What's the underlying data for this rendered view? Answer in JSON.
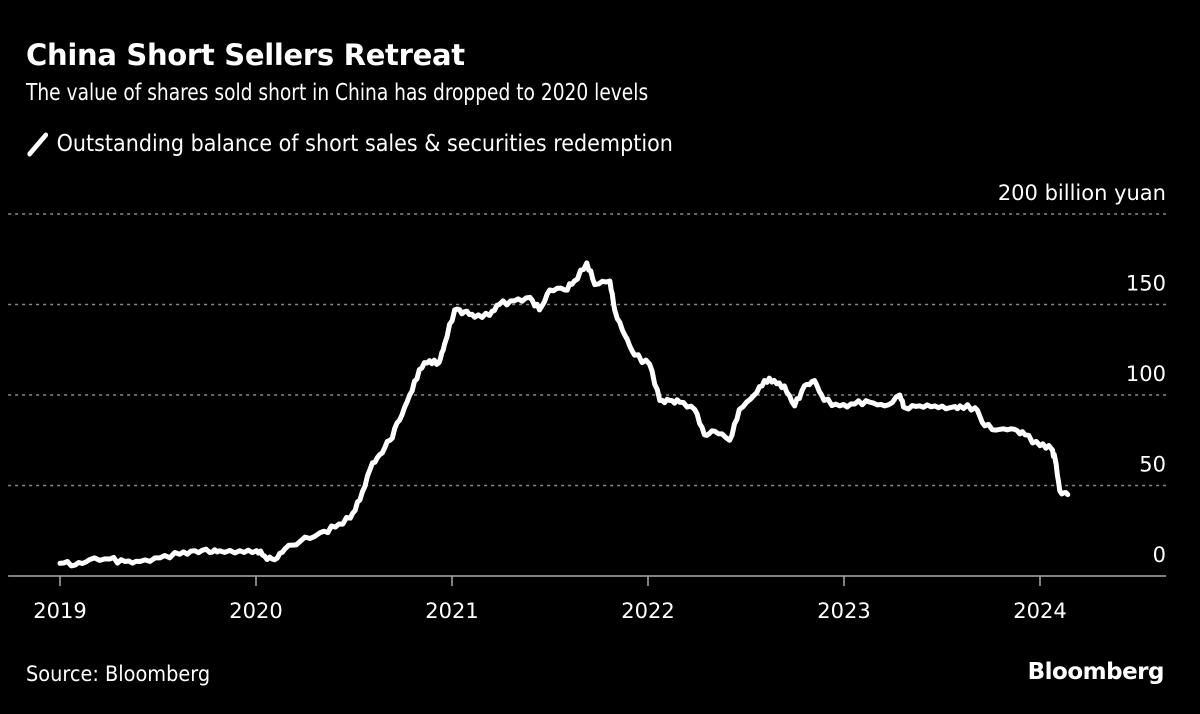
{
  "chart_data": {
    "type": "line",
    "title": "China Short Sellers Retreat",
    "subtitle": "The value of shares sold short in China has dropped to 2020 levels",
    "source": "Source: Bloomberg",
    "logo": "Bloomberg",
    "ylabel": "200 billion yuan",
    "ylim": [
      0,
      200
    ],
    "yticks": [
      0,
      50,
      100,
      150,
      200
    ],
    "ytick_labels": [
      "0",
      "50",
      "100",
      "150",
      "200 billion yuan"
    ],
    "xticks": [
      "2019",
      "2020",
      "2021",
      "2022",
      "2023",
      "2024"
    ],
    "xlim": [
      "2018-10-15",
      "2024-08-15"
    ],
    "grid": "horizontal dotted",
    "legend_placement": "top-left",
    "colors": {
      "background": "#000000",
      "line": "#ffffff",
      "grid": "#8a8a8a"
    },
    "series": [
      {
        "name": "Outstanding balance of short sales & securities redemption",
        "points": [
          [
            "2019-01-01",
            7
          ],
          [
            "2019-01-29",
            6
          ],
          [
            "2019-02-25",
            9
          ],
          [
            "2019-04-04",
            9.4
          ],
          [
            "2019-05-02",
            8
          ],
          [
            "2019-05-30",
            8
          ],
          [
            "2019-07-06",
            10
          ],
          [
            "2019-08-12",
            12
          ],
          [
            "2019-09-09",
            14
          ],
          [
            "2019-10-07",
            13
          ],
          [
            "2019-10-25",
            14
          ],
          [
            "2019-12-02",
            14
          ],
          [
            "2020-01-02",
            14
          ],
          [
            "2020-01-17",
            11
          ],
          [
            "2020-02-05",
            9
          ],
          [
            "2020-02-24",
            15
          ],
          [
            "2020-03-23",
            19
          ],
          [
            "2020-04-30",
            24
          ],
          [
            "2020-05-28",
            27
          ],
          [
            "2020-06-25",
            32
          ],
          [
            "2020-07-13",
            42
          ],
          [
            "2020-08-01",
            59
          ],
          [
            "2020-08-19",
            67
          ],
          [
            "2020-09-07",
            75
          ],
          [
            "2020-09-25",
            86
          ],
          [
            "2020-10-14",
            100
          ],
          [
            "2020-11-01",
            114
          ],
          [
            "2020-11-20",
            119
          ],
          [
            "2020-12-08",
            118
          ],
          [
            "2020-12-18",
            128
          ],
          [
            "2021-01-06",
            147
          ],
          [
            "2021-01-24",
            146
          ],
          [
            "2021-02-12",
            143
          ],
          [
            "2021-03-12",
            144
          ],
          [
            "2021-03-30",
            150
          ],
          [
            "2021-04-27",
            152
          ],
          [
            "2021-05-26",
            154
          ],
          [
            "2021-06-13",
            147
          ],
          [
            "2021-07-02",
            158
          ],
          [
            "2021-07-30",
            158
          ],
          [
            "2021-08-17",
            163
          ],
          [
            "2021-09-09",
            173
          ],
          [
            "2021-09-24",
            161
          ],
          [
            "2021-10-22",
            163
          ],
          [
            "2021-10-31",
            147
          ],
          [
            "2021-11-19",
            133
          ],
          [
            "2021-12-07",
            122
          ],
          [
            "2022-01-04",
            117
          ],
          [
            "2022-01-23",
            97
          ],
          [
            "2022-02-10",
            97
          ],
          [
            "2022-03-01",
            96
          ],
          [
            "2022-03-29",
            92
          ],
          [
            "2022-04-16",
            78
          ],
          [
            "2022-05-05",
            80
          ],
          [
            "2022-06-02",
            75
          ],
          [
            "2022-06-20",
            92
          ],
          [
            "2022-07-18",
            100
          ],
          [
            "2022-08-06",
            108
          ],
          [
            "2022-08-24",
            108
          ],
          [
            "2022-09-12",
            105
          ],
          [
            "2022-10-01",
            94
          ],
          [
            "2022-10-19",
            105
          ],
          [
            "2022-11-07",
            108
          ],
          [
            "2022-11-25",
            97
          ],
          [
            "2022-12-24",
            94
          ],
          [
            "2023-01-21",
            95
          ],
          [
            "2023-02-18",
            96
          ],
          [
            "2023-03-18",
            94
          ],
          [
            "2023-04-15",
            100
          ],
          [
            "2023-04-24",
            93
          ],
          [
            "2023-05-22",
            94
          ],
          [
            "2023-06-19",
            94
          ],
          [
            "2023-07-17",
            93
          ],
          [
            "2023-08-05",
            94
          ],
          [
            "2023-09-02",
            93
          ],
          [
            "2023-09-20",
            83
          ],
          [
            "2023-10-18",
            81
          ],
          [
            "2023-11-15",
            81
          ],
          [
            "2023-12-04",
            78
          ],
          [
            "2024-01-01",
            72
          ],
          [
            "2024-01-23",
            70
          ],
          [
            "2024-01-29",
            65
          ],
          [
            "2024-02-07",
            47
          ],
          [
            "2024-02-22",
            45
          ]
        ]
      }
    ]
  }
}
